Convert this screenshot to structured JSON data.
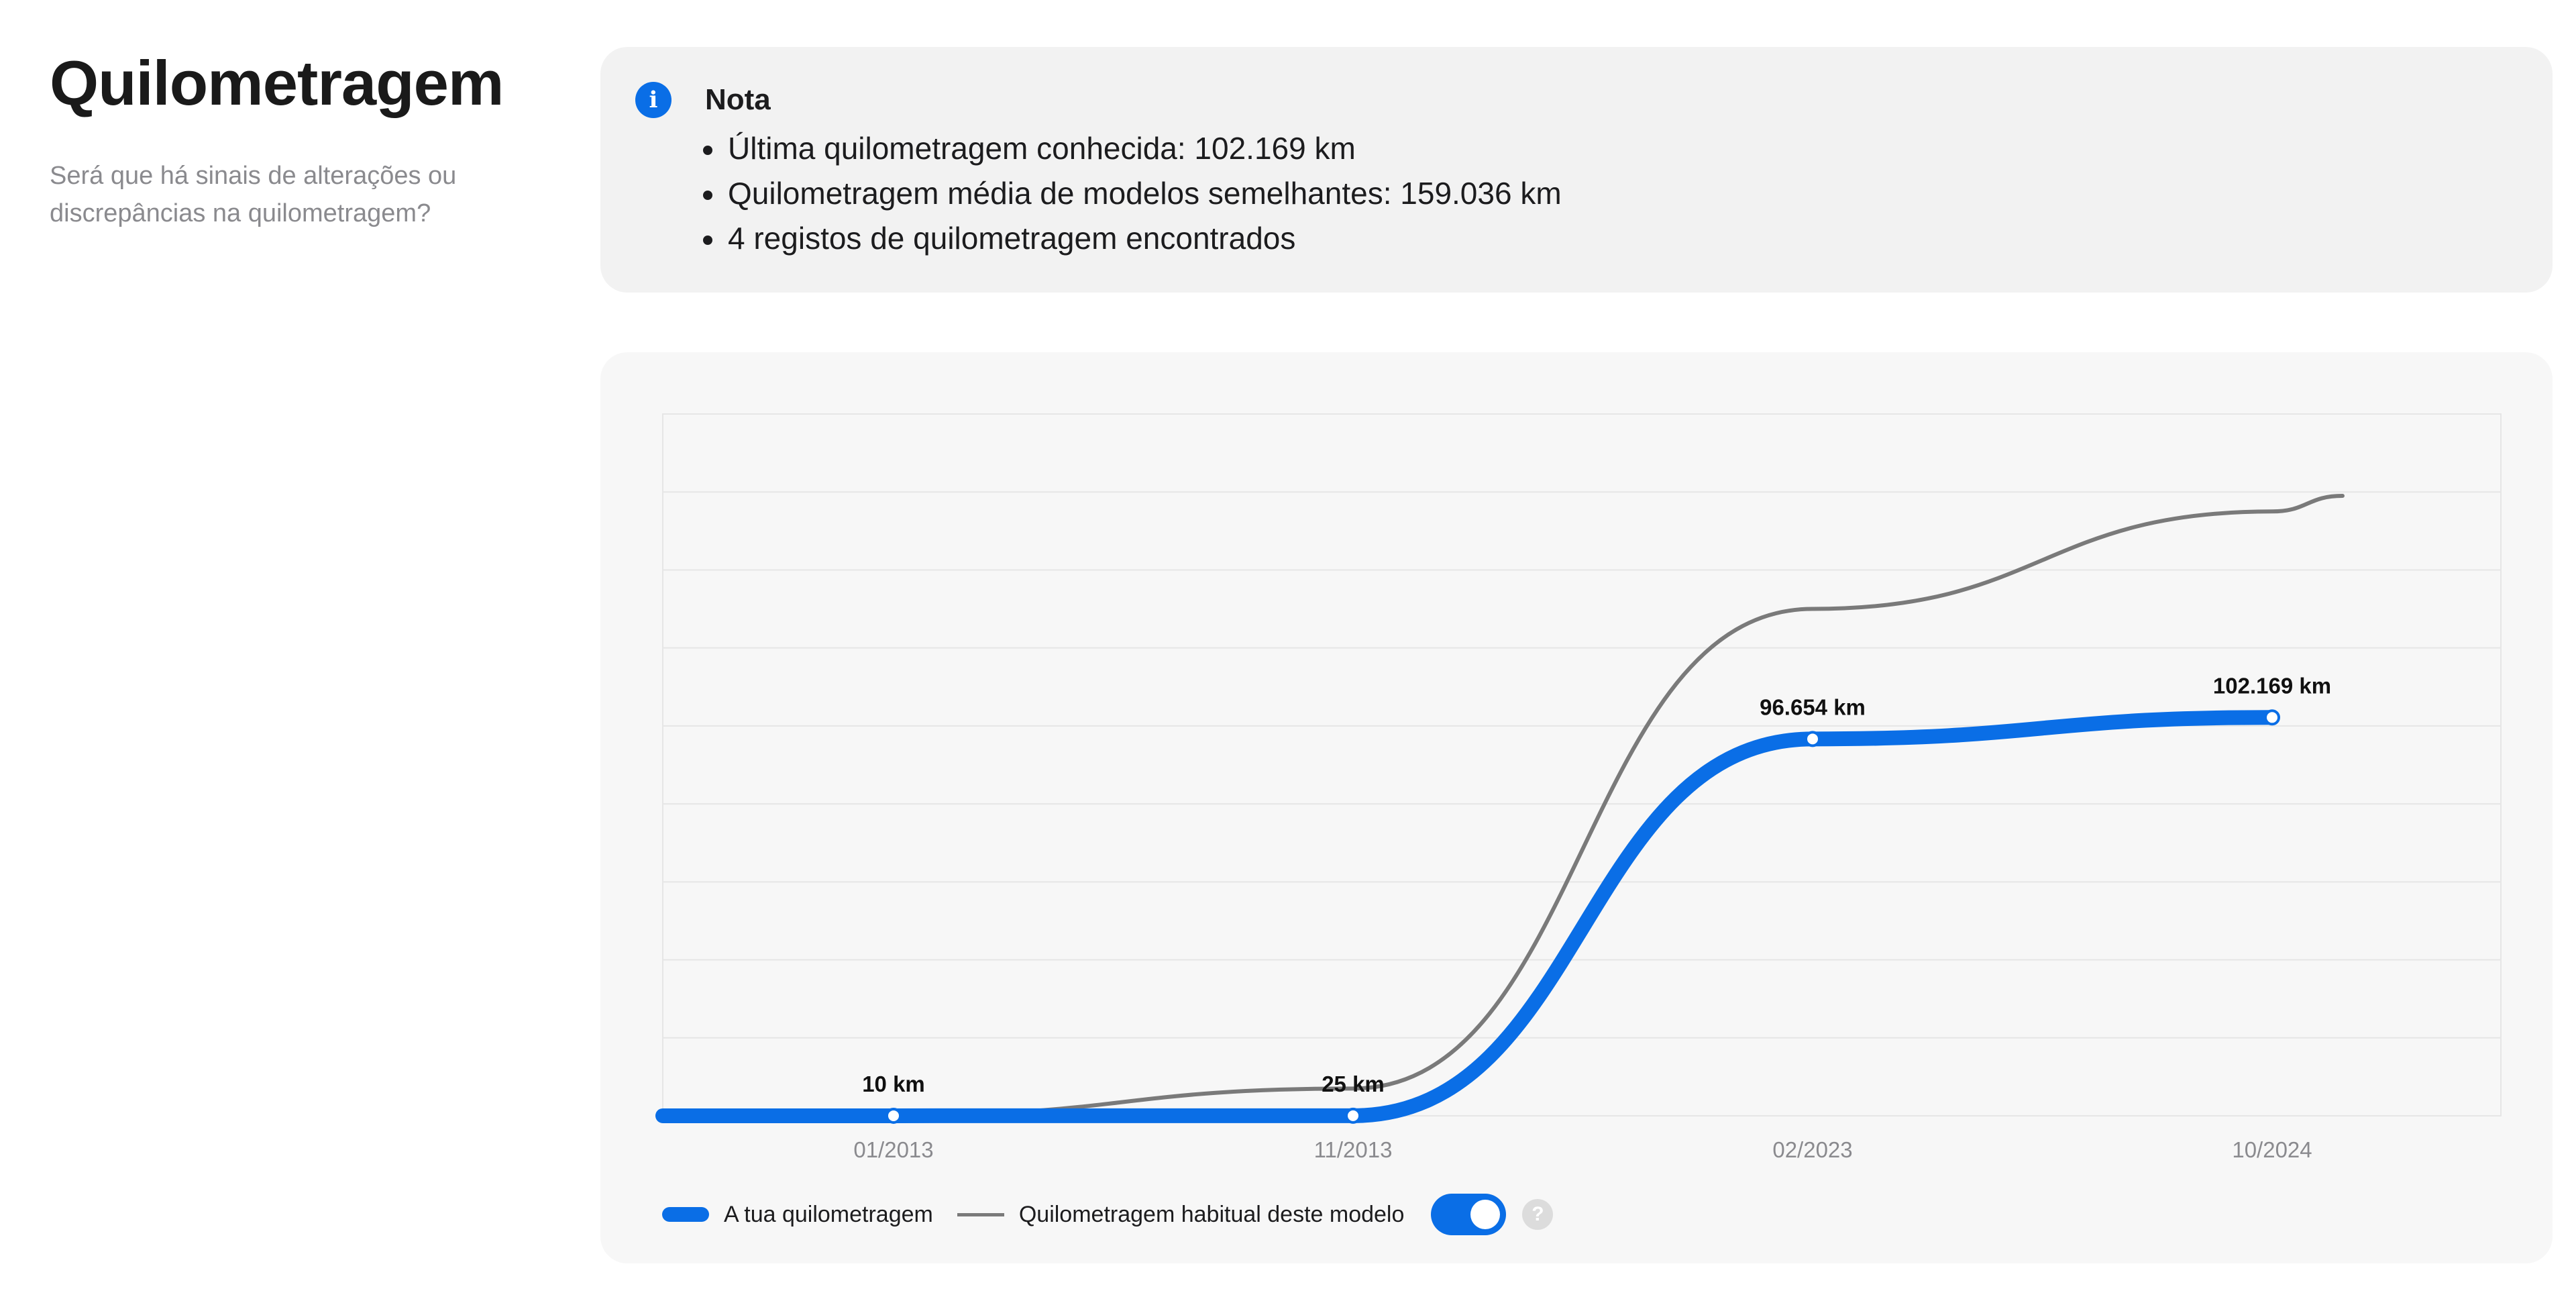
{
  "header": {
    "title": "Quilometragem",
    "subtitle": "Será que há sinais de alterações ou discrepâncias na quilometragem?"
  },
  "note": {
    "icon": "info-icon",
    "title": "Nota",
    "items": [
      "Última quilometragem conhecida: 102.169 km",
      "Quilometragem média de modelos semelhantes: 159.036 km",
      "4 registos de quilometragem encontrados"
    ]
  },
  "colors": {
    "accent": "#0a6ee6",
    "typical_line": "#7a7a7a",
    "card_bg": "#f2f2f2"
  },
  "legend": {
    "your_mileage": "A tua quilometragem",
    "typical_mileage": "Quilometragem habitual deste modelo",
    "toggle_on": true,
    "help_icon": "question-icon"
  },
  "chart_data": {
    "type": "line",
    "title": "",
    "xlabel": "",
    "ylabel": "",
    "categories": [
      "01/2013",
      "11/2013",
      "02/2023",
      "10/2024"
    ],
    "ylim": [
      0,
      180000
    ],
    "grid": true,
    "legend_position": "bottom-left",
    "series": [
      {
        "name": "A tua quilometragem",
        "color": "#0a6ee6",
        "values": [
          10,
          25,
          96654,
          102169
        ],
        "labels": [
          "10 km",
          "25 km",
          "96.654 km",
          "102.169 km"
        ]
      },
      {
        "name": "Quilometragem habitual deste modelo",
        "color": "#7a7a7a",
        "values": [
          100,
          7000,
          130000,
          155000
        ]
      }
    ]
  }
}
